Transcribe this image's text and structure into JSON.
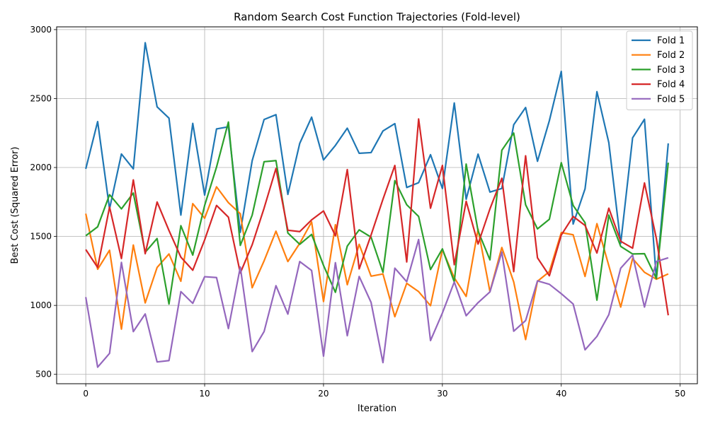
{
  "chart_data": {
    "type": "line",
    "title": "Random Search Cost Function Trajectories (Fold-level)",
    "xlabel": "Iteration",
    "ylabel": "Best Cost (Squared Error)",
    "xlim": [
      -2.45,
      51.45
    ],
    "ylim": [
      432,
      3020
    ],
    "xticks": [
      0,
      10,
      20,
      30,
      40,
      50
    ],
    "yticks": [
      500,
      1000,
      1500,
      2000,
      2500,
      3000
    ],
    "grid": true,
    "legend_position": "top-right",
    "x": [
      0,
      1,
      2,
      3,
      4,
      5,
      6,
      7,
      8,
      9,
      10,
      11,
      12,
      13,
      14,
      15,
      16,
      17,
      18,
      19,
      20,
      21,
      22,
      23,
      24,
      25,
      26,
      27,
      28,
      29,
      30,
      31,
      32,
      33,
      34,
      35,
      36,
      37,
      38,
      39,
      40,
      41,
      42,
      43,
      44,
      45,
      46,
      47,
      48,
      49
    ],
    "series": [
      {
        "name": "Fold 1",
        "color": "#1f77b4",
        "values": [
          1990,
          2333,
          1700,
          2098,
          1990,
          2905,
          2440,
          2358,
          1655,
          2320,
          1800,
          2280,
          2295,
          1530,
          2050,
          2348,
          2383,
          1805,
          2175,
          2365,
          2055,
          2160,
          2285,
          2103,
          2108,
          2265,
          2318,
          1855,
          1890,
          2093,
          1848,
          2468,
          1770,
          2097,
          1822,
          1848,
          2310,
          2435,
          2045,
          2340,
          2697,
          1590,
          1845,
          2550,
          2180,
          1450,
          2215,
          2350,
          1190,
          2175
        ]
      },
      {
        "name": "Fold 2",
        "color": "#ff7f0e",
        "values": [
          1665,
          1262,
          1400,
          828,
          1438,
          1018,
          1275,
          1373,
          1175,
          1738,
          1632,
          1860,
          1745,
          1665,
          1128,
          1323,
          1538,
          1318,
          1450,
          1605,
          1028,
          1585,
          1150,
          1443,
          1212,
          1228,
          918,
          1160,
          1100,
          998,
          1405,
          1200,
          1065,
          1553,
          1100,
          1420,
          1170,
          752,
          1175,
          1245,
          1528,
          1512,
          1210,
          1593,
          1288,
          988,
          1340,
          1240,
          1190,
          1228
        ]
      },
      {
        "name": "Fold 3",
        "color": "#2ca02c",
        "values": [
          1505,
          1570,
          1803,
          1700,
          1815,
          1385,
          1485,
          1010,
          1578,
          1365,
          1725,
          2003,
          2330,
          1435,
          1655,
          2042,
          2050,
          1525,
          1443,
          1515,
          1290,
          1095,
          1430,
          1548,
          1495,
          1240,
          1905,
          1730,
          1645,
          1260,
          1410,
          1170,
          2025,
          1540,
          1330,
          2125,
          2250,
          1730,
          1555,
          1625,
          2035,
          1725,
          1600,
          1038,
          1655,
          1428,
          1373,
          1375,
          1195,
          2035
        ]
      },
      {
        "name": "Fold 4",
        "color": "#d62728",
        "values": [
          1405,
          1275,
          1713,
          1340,
          1910,
          1375,
          1750,
          1543,
          1350,
          1255,
          1475,
          1725,
          1640,
          1235,
          1440,
          1705,
          1993,
          1545,
          1535,
          1620,
          1685,
          1505,
          1985,
          1265,
          1510,
          1770,
          2015,
          1315,
          2352,
          1705,
          2015,
          1295,
          1755,
          1445,
          1700,
          1922,
          1245,
          2085,
          1345,
          1215,
          1510,
          1645,
          1580,
          1380,
          1705,
          1465,
          1415,
          1888,
          1485,
          928
        ]
      },
      {
        "name": "Fold 5",
        "color": "#9467bd",
        "values": [
          1060,
          552,
          652,
          1312,
          810,
          938,
          590,
          600,
          1100,
          1015,
          1208,
          1202,
          832,
          1278,
          665,
          810,
          1143,
          937,
          1318,
          1253,
          632,
          1310,
          780,
          1210,
          1022,
          585,
          1270,
          1172,
          1478,
          745,
          945,
          1170,
          925,
          1020,
          1098,
          1387,
          813,
          890,
          1178,
          1153,
          1085,
          1010,
          678,
          775,
          933,
          1270,
          1365,
          988,
          1318,
          1345
        ]
      }
    ]
  }
}
